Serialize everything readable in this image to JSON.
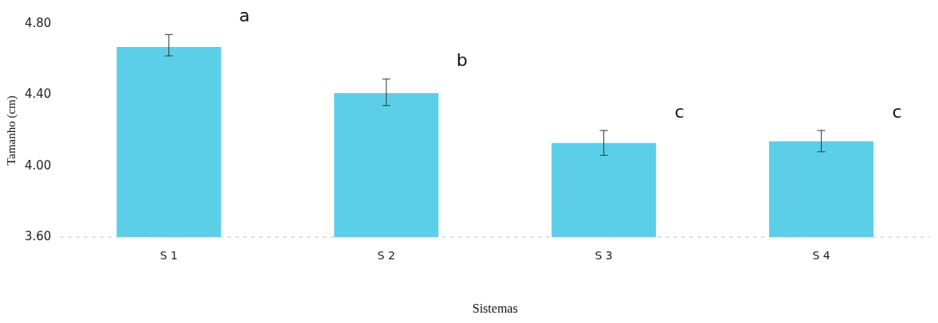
{
  "chart_data": {
    "type": "bar",
    "xlabel": "Sistemas",
    "ylabel": "Tamanho (cm)",
    "categories": [
      "S 1",
      "S 2",
      "S 3",
      "S 4"
    ],
    "values": [
      4.67,
      4.41,
      4.13,
      4.14
    ],
    "errors": [
      [
        4.62,
        4.74
      ],
      [
        4.34,
        4.49
      ],
      [
        4.06,
        4.2
      ],
      [
        4.08,
        4.2
      ]
    ],
    "color": "#5ccfe8",
    "ylim": [
      3.6,
      4.8
    ],
    "yticks": [
      {
        "value": 3.6,
        "label": "3.60"
      },
      {
        "value": 4.0,
        "label": "4.00"
      },
      {
        "value": 4.4,
        "label": "4.40"
      },
      {
        "value": 4.8,
        "label": "4.80"
      }
    ],
    "annotations": [
      "a",
      "b",
      "c",
      "c"
    ]
  }
}
